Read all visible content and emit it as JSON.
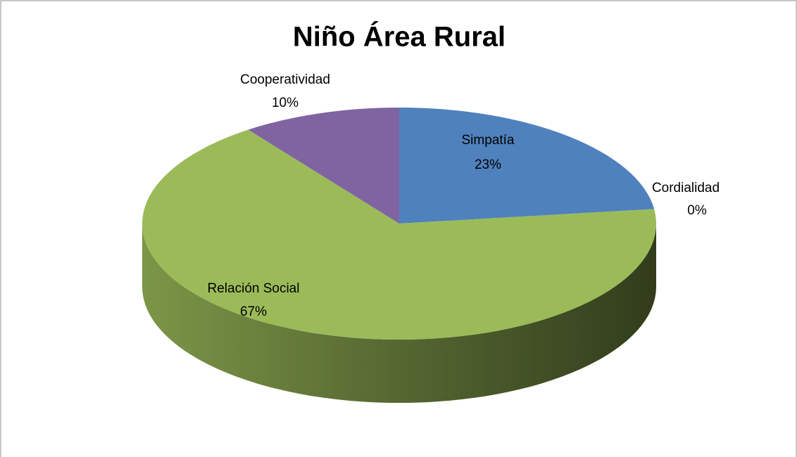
{
  "chart_data": {
    "type": "pie",
    "title": "Niño Área Rural",
    "categories": [
      "Simpatía",
      "Cordialidad",
      "Relación Social",
      "Cooperatividad"
    ],
    "values": [
      23,
      0,
      67,
      10
    ],
    "value_labels": [
      "23%",
      "0%",
      "67%",
      "10%"
    ],
    "colors": [
      "#4f81bd",
      "#c0504d",
      "#9bbb59",
      "#8064a2"
    ]
  }
}
